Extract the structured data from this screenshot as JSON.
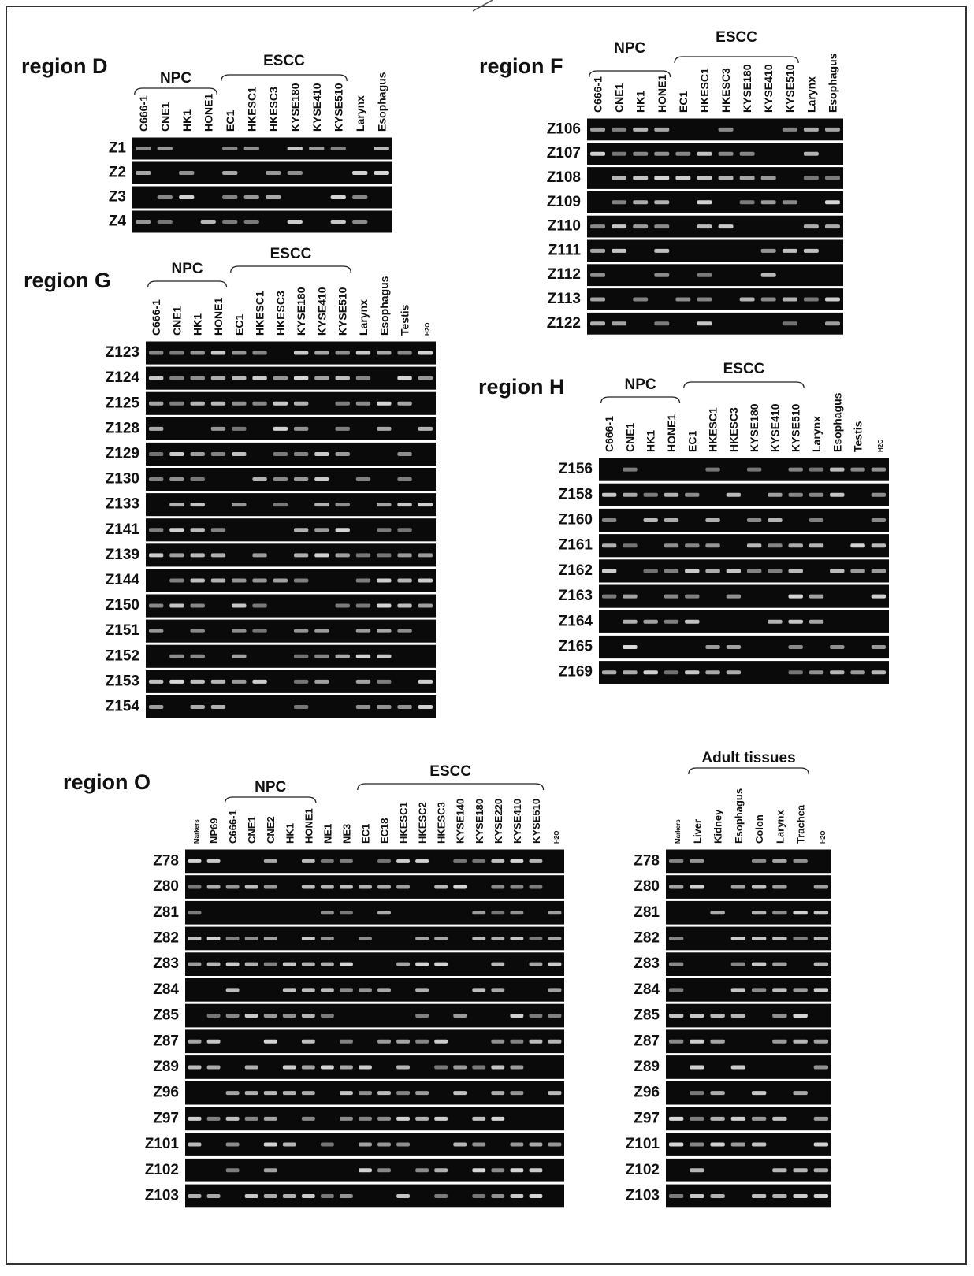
{
  "panels": [
    {
      "title": "region D",
      "groups": [
        "NPC",
        "ESCC"
      ],
      "columns": [
        "C666-1",
        "CNE1",
        "HK1",
        "HONE1",
        "EC1",
        "HKESC1",
        "HKESC3",
        "KYSE180",
        "KYSE410",
        "KYSE510",
        "Larynx",
        "Esophagus"
      ],
      "rows": [
        "Z1",
        "Z2",
        "Z3",
        "Z4"
      ]
    },
    {
      "title": "region F",
      "groups": [
        "NPC",
        "ESCC"
      ],
      "columns": [
        "C666-1",
        "CNE1",
        "HK1",
        "HONE1",
        "EC1",
        "HKESC1",
        "HKESC3",
        "KYSE180",
        "KYSE410",
        "KYSE510",
        "Larynx",
        "Esophagus"
      ],
      "rows": [
        "Z106",
        "Z107",
        "Z108",
        "Z109",
        "Z110",
        "Z111",
        "Z112",
        "Z113",
        "Z122"
      ]
    },
    {
      "title": "region G",
      "groups": [
        "NPC",
        "ESCC"
      ],
      "columns": [
        "C666-1",
        "CNE1",
        "HK1",
        "HONE1",
        "EC1",
        "HKESC1",
        "HKESC3",
        "KYSE180",
        "KYSE410",
        "KYSE510",
        "Larynx",
        "Esophagus",
        "Testis",
        "H2O"
      ],
      "rows": [
        "Z123",
        "Z124",
        "Z125",
        "Z128",
        "Z129",
        "Z130",
        "Z133",
        "Z141",
        "Z139",
        "Z144",
        "Z150",
        "Z151",
        "Z152",
        "Z153",
        "Z154"
      ]
    },
    {
      "title": "region H",
      "groups": [
        "NPC",
        "ESCC"
      ],
      "columns": [
        "C666-1",
        "CNE1",
        "HK1",
        "HONE1",
        "EC1",
        "HKESC1",
        "HKESC3",
        "KYSE180",
        "KYSE410",
        "KYSE510",
        "Larynx",
        "Esophagus",
        "Testis",
        "H2O"
      ],
      "rows": [
        "Z156",
        "Z158",
        "Z160",
        "Z161",
        "Z162",
        "Z163",
        "Z164",
        "Z165",
        "Z169"
      ]
    },
    {
      "title": "region O",
      "groups": [
        "NPC",
        "ESCC"
      ],
      "columns": [
        "Markers",
        "NP69",
        "C666-1",
        "CNE1",
        "CNE2",
        "HK1",
        "HONE1",
        "NE1",
        "NE3",
        "EC1",
        "EC18",
        "HKESC1",
        "HKESC2",
        "HKESC3",
        "KYSE140",
        "KYSE180",
        "KYSE220",
        "KYSE410",
        "KYSE510",
        "H2O"
      ],
      "rows": [
        "Z78",
        "Z80",
        "Z81",
        "Z82",
        "Z83",
        "Z84",
        "Z85",
        "Z87",
        "Z89",
        "Z96",
        "Z97",
        "Z101",
        "Z102",
        "Z103"
      ]
    },
    {
      "groups": [
        "Adult tissues"
      ],
      "columns": [
        "Markers",
        "Liver",
        "Kidney",
        "Esophagus",
        "Colon",
        "Larynx",
        "Trachea",
        "H2O"
      ],
      "rows": [
        "Z78",
        "Z80",
        "Z81",
        "Z82",
        "Z83",
        "Z84",
        "Z85",
        "Z87",
        "Z89",
        "Z96",
        "Z97",
        "Z101",
        "Z102",
        "Z103"
      ]
    }
  ]
}
